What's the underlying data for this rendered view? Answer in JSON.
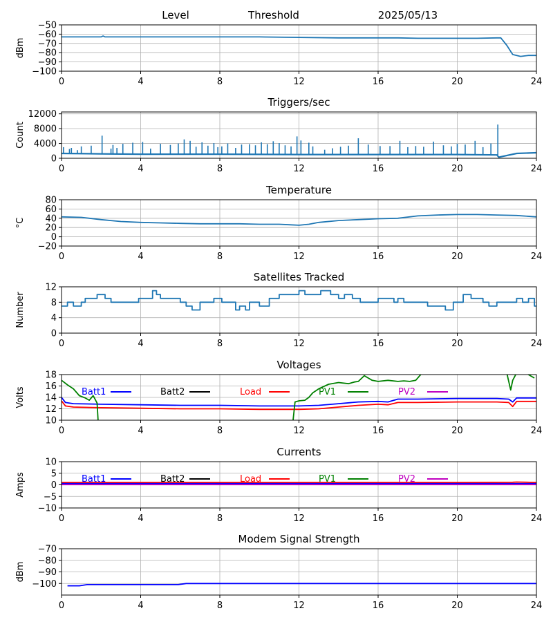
{
  "header": {
    "level": "Level",
    "threshold": "Threshold",
    "date": "2025/05/13"
  },
  "chart_data": [
    {
      "id": "level",
      "type": "line",
      "title": "",
      "xlabel": "",
      "ylabel": "dBm",
      "xlim": [
        0,
        24
      ],
      "ylim": [
        -100,
        -50
      ],
      "xticks": [
        0,
        4,
        8,
        12,
        16,
        20,
        24
      ],
      "yticks": [
        -50,
        -60,
        -70,
        -80,
        -90,
        -100
      ],
      "grid": true,
      "series": [
        {
          "color": "#1f77b4",
          "x": [
            0,
            1,
            2,
            2.1,
            2.2,
            3,
            4,
            6,
            8,
            10,
            12,
            14,
            15,
            16,
            17,
            18,
            20,
            21,
            22,
            22.2,
            22.5,
            22.8,
            23.2,
            23.6,
            24
          ],
          "y": [
            -63,
            -63,
            -63,
            -62,
            -63,
            -63,
            -63,
            -63,
            -63,
            -63,
            -63.5,
            -64,
            -64,
            -64,
            -64,
            -64.5,
            -64.5,
            -64.5,
            -64,
            -64,
            -72,
            -82,
            -84,
            -83,
            -83
          ]
        }
      ]
    },
    {
      "id": "triggers",
      "type": "line",
      "title": "Triggers/sec",
      "xlabel": "",
      "ylabel": "Count",
      "xlim": [
        0,
        24
      ],
      "ylim": [
        0,
        12500
      ],
      "xticks": [
        0,
        4,
        8,
        12,
        16,
        20,
        24
      ],
      "yticks": [
        0,
        4000,
        8000,
        12000
      ],
      "grid": true,
      "baseline": [
        {
          "x": 0,
          "y": 1300
        },
        {
          "x": 2,
          "y": 1200
        },
        {
          "x": 4,
          "y": 1100
        },
        {
          "x": 8,
          "y": 1100
        },
        {
          "x": 12,
          "y": 1000
        },
        {
          "x": 16,
          "y": 1000
        },
        {
          "x": 20,
          "y": 1000
        },
        {
          "x": 22,
          "y": 900
        },
        {
          "x": 22.1,
          "y": 300
        },
        {
          "x": 23,
          "y": 1300
        },
        {
          "x": 24,
          "y": 1500
        }
      ],
      "spikes": [
        [
          0.1,
          3000
        ],
        [
          0.4,
          2500
        ],
        [
          0.5,
          2800
        ],
        [
          0.8,
          2200
        ],
        [
          1.0,
          3200
        ],
        [
          1.5,
          3400
        ],
        [
          2.05,
          6100
        ],
        [
          2.5,
          2600
        ],
        [
          2.6,
          3600
        ],
        [
          2.8,
          2800
        ],
        [
          3.1,
          3900
        ],
        [
          3.6,
          4200
        ],
        [
          4.1,
          4400
        ],
        [
          4.5,
          2600
        ],
        [
          5.0,
          3900
        ],
        [
          5.5,
          3600
        ],
        [
          5.9,
          4000
        ],
        [
          6.2,
          5100
        ],
        [
          6.5,
          4700
        ],
        [
          6.8,
          3100
        ],
        [
          7.1,
          4300
        ],
        [
          7.4,
          3400
        ],
        [
          7.7,
          4100
        ],
        [
          7.9,
          3000
        ],
        [
          8.1,
          3200
        ],
        [
          8.4,
          4000
        ],
        [
          8.8,
          2800
        ],
        [
          9.1,
          3700
        ],
        [
          9.5,
          3800
        ],
        [
          9.8,
          3500
        ],
        [
          10.1,
          4300
        ],
        [
          10.4,
          3800
        ],
        [
          10.7,
          4600
        ],
        [
          11.0,
          4100
        ],
        [
          11.3,
          3500
        ],
        [
          11.6,
          3200
        ],
        [
          11.9,
          5900
        ],
        [
          12.1,
          4800
        ],
        [
          12.5,
          4200
        ],
        [
          12.7,
          3200
        ],
        [
          13.3,
          2300
        ],
        [
          13.7,
          2700
        ],
        [
          14.1,
          3100
        ],
        [
          14.5,
          3400
        ],
        [
          15.0,
          5400
        ],
        [
          15.5,
          3700
        ],
        [
          16.1,
          3300
        ],
        [
          16.6,
          3300
        ],
        [
          17.1,
          4700
        ],
        [
          17.5,
          3000
        ],
        [
          17.9,
          3300
        ],
        [
          18.3,
          3100
        ],
        [
          18.8,
          4500
        ],
        [
          19.3,
          3500
        ],
        [
          19.7,
          3200
        ],
        [
          20.0,
          3900
        ],
        [
          20.4,
          3700
        ],
        [
          20.9,
          4700
        ],
        [
          21.3,
          3000
        ],
        [
          21.7,
          4000
        ],
        [
          22.05,
          9100
        ]
      ]
    },
    {
      "id": "temperature",
      "type": "line",
      "title": "Temperature",
      "xlabel": "",
      "ylabel": "°C",
      "xlim": [
        0,
        24
      ],
      "ylim": [
        -20,
        80
      ],
      "xticks": [
        0,
        4,
        8,
        12,
        16,
        20,
        24
      ],
      "yticks": [
        80,
        60,
        40,
        20,
        0,
        -20
      ],
      "grid": true,
      "series": [
        {
          "color": "#1f77b4",
          "x": [
            0,
            1,
            2,
            3,
            4,
            5,
            6,
            7,
            8,
            9,
            10,
            11,
            11.5,
            12,
            12.5,
            13,
            14,
            15,
            16,
            17,
            18,
            19,
            20,
            21,
            22,
            23,
            24
          ],
          "y": [
            43,
            42,
            37,
            33,
            31,
            30,
            29,
            28,
            28,
            28,
            27,
            27,
            26,
            25,
            27,
            31,
            35,
            37,
            39,
            40,
            45,
            47,
            48,
            48,
            47,
            46,
            43
          ]
        }
      ]
    },
    {
      "id": "satellites",
      "type": "line",
      "title": "Satellites Tracked",
      "xlabel": "",
      "ylabel": "Number",
      "xlim": [
        0,
        24
      ],
      "ylim": [
        0,
        12
      ],
      "xticks": [
        0,
        4,
        8,
        12,
        16,
        20,
        24
      ],
      "yticks": [
        12,
        8,
        4,
        0
      ],
      "grid": true,
      "series": [
        {
          "color": "#1f77b4",
          "step": true,
          "x": [
            0,
            0.3,
            0.6,
            1.0,
            1.2,
            1.7,
            1.8,
            2.0,
            2.2,
            2.5,
            2.9,
            3.3,
            3.8,
            3.9,
            4.0,
            4.6,
            4.8,
            5.0,
            6.0,
            6.3,
            6.6,
            7.0,
            7.5,
            7.7,
            8.1,
            8.5,
            8.8,
            9.0,
            9.3,
            9.5,
            10.0,
            10.5,
            11.0,
            11.5,
            12.0,
            12.3,
            12.8,
            13.1,
            13.6,
            14.0,
            14.3,
            14.7,
            15.1,
            15.5,
            16.0,
            16.5,
            16.8,
            17.0,
            17.3,
            17.9,
            18.5,
            19.0,
            19.4,
            19.8,
            20.3,
            20.7,
            21.3,
            21.6,
            22.0,
            22.3,
            22.8,
            23.0,
            23.3,
            23.6,
            23.9
          ],
          "y": [
            7,
            8,
            7,
            8,
            9,
            9,
            10,
            10,
            9,
            8,
            8,
            8,
            8,
            9,
            9,
            11,
            10,
            9,
            8,
            7,
            6,
            8,
            8,
            9,
            8,
            8,
            6,
            7,
            6,
            8,
            7,
            9,
            10,
            10,
            11,
            10,
            10,
            11,
            10,
            9,
            10,
            9,
            8,
            8,
            9,
            9,
            8,
            9,
            8,
            8,
            7,
            7,
            6,
            8,
            10,
            9,
            8,
            7,
            8,
            8,
            8,
            9,
            8,
            9,
            7
          ]
        }
      ]
    },
    {
      "id": "voltages",
      "type": "line",
      "title": "Voltages",
      "xlabel": "",
      "ylabel": "Volts",
      "xlim": [
        0,
        24
      ],
      "ylim": [
        10,
        18
      ],
      "xticks": [
        0,
        4,
        8,
        12,
        16,
        20,
        24
      ],
      "yticks": [
        18,
        16,
        14,
        12,
        10
      ],
      "grid": true,
      "legend": [
        {
          "label": "Batt1",
          "color": "#0000ff"
        },
        {
          "label": "Batt2",
          "color": "#000000"
        },
        {
          "label": "Load",
          "color": "#ff0000"
        },
        {
          "label": "PV1",
          "color": "#008000"
        },
        {
          "label": "PV2",
          "color": "#bf00bf"
        }
      ],
      "series": [
        {
          "name": "Batt1",
          "color": "#0000ff",
          "x": [
            0,
            0.2,
            0.6,
            2,
            4,
            6,
            8,
            10,
            12,
            13,
            14,
            15,
            16,
            16.5,
            17,
            18,
            20,
            22,
            22.6,
            22.8,
            23,
            24
          ],
          "y": [
            14.0,
            13.1,
            12.9,
            12.8,
            12.7,
            12.6,
            12.6,
            12.5,
            12.5,
            12.6,
            12.9,
            13.2,
            13.3,
            13.2,
            13.7,
            13.7,
            13.8,
            13.8,
            13.7,
            13.2,
            13.9,
            13.9
          ]
        },
        {
          "name": "Load",
          "color": "#ff0000",
          "x": [
            0,
            0.2,
            0.6,
            2,
            4,
            6,
            8,
            10,
            12,
            13,
            14,
            15,
            16,
            16.5,
            17,
            18,
            20,
            22,
            22.6,
            22.8,
            23,
            24
          ],
          "y": [
            13.4,
            12.5,
            12.3,
            12.2,
            12.1,
            12.0,
            12.0,
            11.9,
            11.9,
            12.0,
            12.3,
            12.6,
            12.8,
            12.7,
            13.1,
            13.1,
            13.2,
            13.2,
            13.1,
            12.4,
            13.3,
            13.3
          ]
        },
        {
          "name": "PV1",
          "color": "#008000",
          "x": [
            0,
            0.3,
            0.6,
            0.9,
            1.2,
            1.4,
            1.6,
            1.8,
            1.85,
            11.7,
            11.8,
            12.0,
            12.3,
            12.5,
            12.7,
            13.0,
            13.5,
            14.0,
            14.5,
            14.8,
            15.0,
            15.3,
            15.7,
            16.0,
            16.5,
            17.0,
            17.3,
            17.6,
            17.9,
            18.2,
            22.5,
            22.7,
            22.8,
            23.0,
            23.2,
            23.5,
            23.9
          ],
          "y": [
            17.0,
            16.2,
            15.5,
            14.3,
            13.9,
            13.5,
            14.3,
            13.0,
            9.7,
            9.9,
            13.2,
            13.4,
            13.5,
            14.0,
            14.8,
            15.5,
            16.3,
            16.6,
            16.4,
            16.7,
            16.8,
            17.8,
            17.0,
            16.8,
            17.0,
            16.8,
            16.9,
            16.8,
            17.0,
            18.2,
            18.3,
            15.3,
            17.0,
            18.3,
            18.3,
            18.2,
            17.4
          ]
        }
      ]
    },
    {
      "id": "currents",
      "type": "line",
      "title": "Currents",
      "xlabel": "",
      "ylabel": "Amps",
      "xlim": [
        0,
        24
      ],
      "ylim": [
        -10,
        10
      ],
      "xticks": [
        0,
        4,
        8,
        12,
        16,
        20,
        24
      ],
      "yticks": [
        10,
        5,
        0,
        -5,
        -10
      ],
      "grid": true,
      "legend": [
        {
          "label": "Batt1",
          "color": "#0000ff"
        },
        {
          "label": "Batt2",
          "color": "#000000"
        },
        {
          "label": "Load",
          "color": "#ff0000"
        },
        {
          "label": "PV1",
          "color": "#008000"
        },
        {
          "label": "PV2",
          "color": "#bf00bf"
        }
      ],
      "series": [
        {
          "name": "Load",
          "color": "#ff0000",
          "x": [
            0,
            4,
            8,
            12,
            16,
            20,
            22.8,
            23,
            24
          ],
          "y": [
            1.0,
            1.0,
            1.0,
            1.0,
            1.0,
            1.0,
            1.1,
            1.2,
            1.0
          ]
        },
        {
          "name": "Batt1",
          "color": "#0000ff",
          "x": [
            0,
            24
          ],
          "y": [
            0.5,
            0.5
          ]
        },
        {
          "name": "PV2",
          "color": "#bf00bf",
          "x": [
            0,
            24
          ],
          "y": [
            0.1,
            0.1
          ]
        }
      ]
    },
    {
      "id": "modem",
      "type": "line",
      "title": "Modem Signal Strength",
      "xlabel": "",
      "ylabel": "dBm",
      "xlim": [
        0,
        24
      ],
      "ylim": [
        -110,
        -70
      ],
      "xticks": [
        0,
        4,
        8,
        12,
        16,
        20,
        24
      ],
      "yticks": [
        -70,
        -80,
        -90,
        -100
      ],
      "grid": true,
      "series": [
        {
          "color": "#0000ff",
          "x": [
            0.3,
            0.9,
            1.3,
            2,
            3,
            4,
            5,
            5.9,
            6.3,
            7,
            8,
            12,
            16,
            20,
            24
          ],
          "y": [
            -102,
            -102,
            -101,
            -101,
            -101,
            -101,
            -101,
            -101,
            -100,
            -100,
            -100,
            -100,
            -100,
            -100,
            -100
          ]
        }
      ]
    }
  ]
}
